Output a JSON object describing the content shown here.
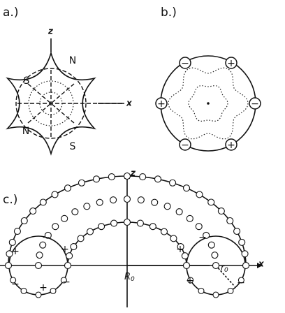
{
  "panel_a": {
    "label": "a.)",
    "axis_z": "z",
    "axis_x": "x",
    "poles": [
      "N",
      "S",
      "N",
      "S"
    ]
  },
  "panel_b": {
    "label": "b.)",
    "signs": [
      "−",
      "+",
      "+",
      "−",
      "−",
      "+"
    ]
  },
  "panel_c": {
    "label": "c.)",
    "axis_z": "z",
    "axis_x": "x",
    "major_radius": {
      "symbol": "R",
      "subscript": "0"
    },
    "minor_radius": {
      "symbol": "r",
      "subscript": "0"
    },
    "signs": [
      "+",
      "−",
      "+",
      "−",
      "+",
      "−",
      "−",
      "+",
      "−",
      "+"
    ]
  }
}
